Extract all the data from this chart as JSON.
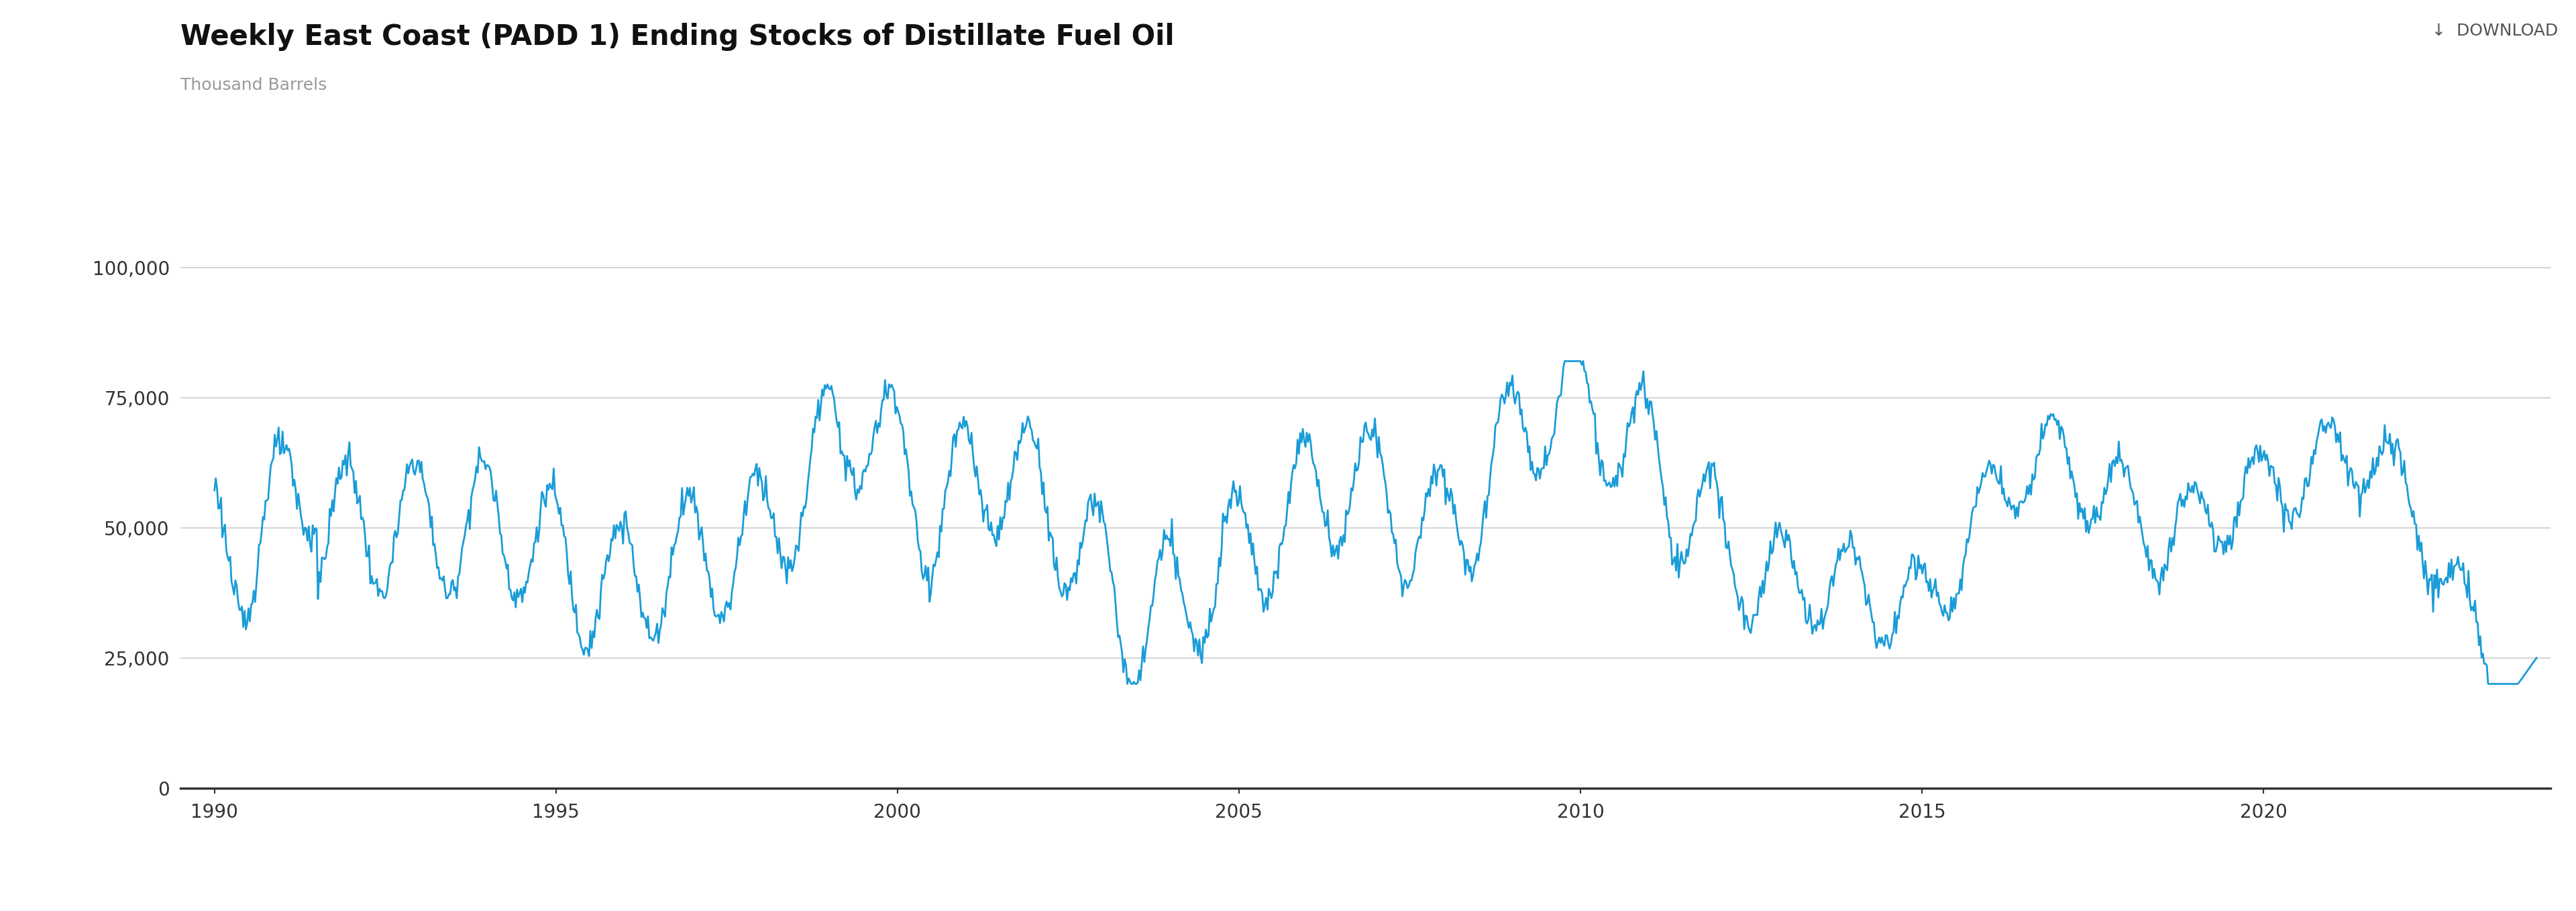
{
  "title": "Weekly East Coast (PADD 1) Ending Stocks of Distillate Fuel Oil",
  "ylabel": "Thousand Barrels",
  "line_color": "#1a9cd8",
  "line_width": 2.0,
  "background_color": "#ffffff",
  "legend_label": "Weekly East Coast (PADD 1) Ending Stocks of Distillate Fuel Oil",
  "yticks": [
    0,
    25000,
    50000,
    75000,
    100000
  ],
  "xticks": [
    1990,
    1995,
    2000,
    2005,
    2010,
    2015,
    2020
  ],
  "xlim": [
    1989.5,
    2024.2
  ],
  "ylim": [
    0,
    105000
  ],
  "grid_color": "#cccccc",
  "title_fontsize": 30,
  "ylabel_fontsize": 18,
  "tick_fontsize": 20,
  "download_fontsize": 18,
  "legend_fontsize": 18
}
